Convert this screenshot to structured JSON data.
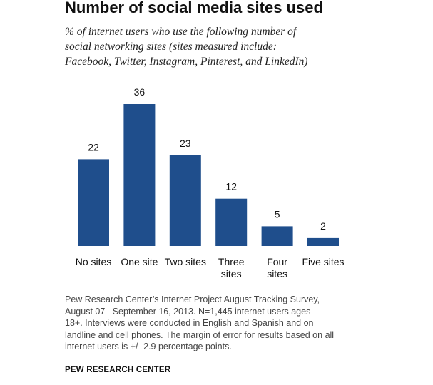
{
  "title": "Number of social media sites used",
  "subtitle_lines": [
    "% of internet users who use the following number of",
    "social networking sites (sites measured include:",
    "Facebook, Twitter, Instagram, Pinterest, and LinkedIn)"
  ],
  "note_lines": [
    "Pew Research Center’s Internet Project August Tracking Survey,",
    "August 07 –September 16, 2013.  N=1,445 internet users ages",
    "18+. Interviews were conducted in English and Spanish and on",
    "landline and cell phones. The margin of error for results based on all",
    "internet users is +/- 2.9 percentage points."
  ],
  "source": "PEW RESEARCH CENTER",
  "colors": {
    "bar": "#1f4e8c"
  },
  "chart_data": {
    "type": "bar",
    "categories": [
      "No sites",
      "One site",
      "Two sites",
      "Three sites",
      "Four sites",
      "Five sites"
    ],
    "category_lines": [
      [
        "No sites"
      ],
      [
        "One site"
      ],
      [
        "Two sites"
      ],
      [
        "Three",
        "sites"
      ],
      [
        "Four",
        "sites"
      ],
      [
        "Five sites"
      ]
    ],
    "values": [
      22,
      36,
      23,
      12,
      5,
      2
    ],
    "xlabel": "",
    "ylabel": "",
    "ylim": [
      0,
      36
    ],
    "grid": false,
    "legend": "none"
  }
}
